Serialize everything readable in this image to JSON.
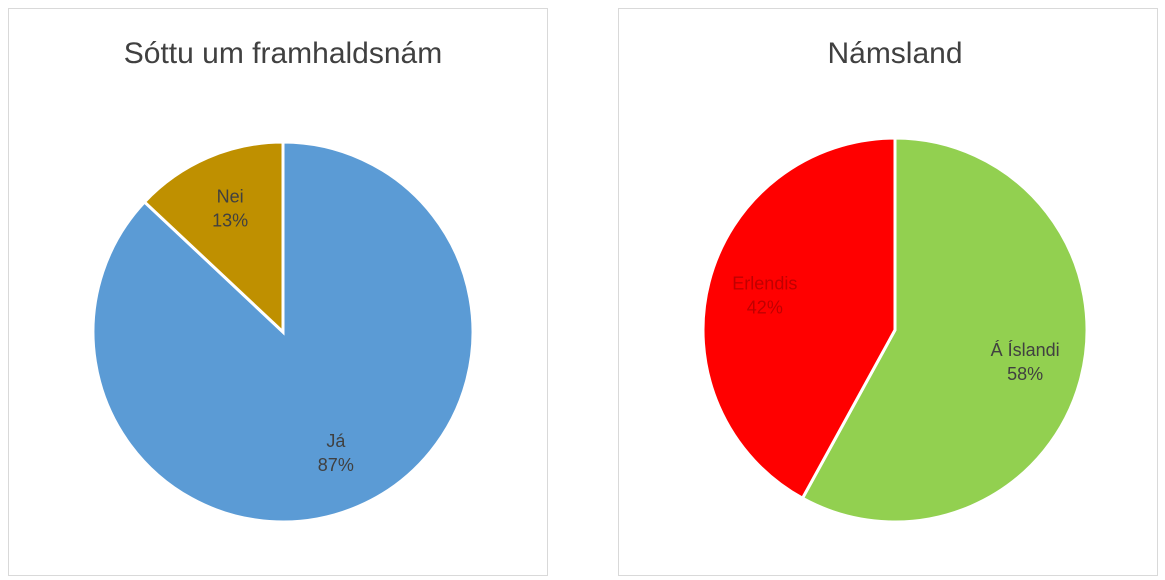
{
  "chart_data": [
    {
      "type": "pie",
      "title": "Sóttu um framhaldsnám",
      "categories": [
        "Já",
        "Nei"
      ],
      "values": [
        87,
        13
      ],
      "value_labels": [
        "87%",
        "13%"
      ],
      "colors": [
        "#5b9bd5",
        "#bf9000"
      ],
      "label_colors": [
        "#404040",
        "#404040"
      ]
    },
    {
      "type": "pie",
      "title": "Námsland",
      "categories": [
        "Á Íslandi",
        "Erlendis"
      ],
      "values": [
        58,
        42
      ],
      "value_labels": [
        "58%",
        "42%"
      ],
      "colors": [
        "#92d050",
        "#ff0000"
      ],
      "label_colors": [
        "#404040",
        "#c00000"
      ]
    }
  ]
}
